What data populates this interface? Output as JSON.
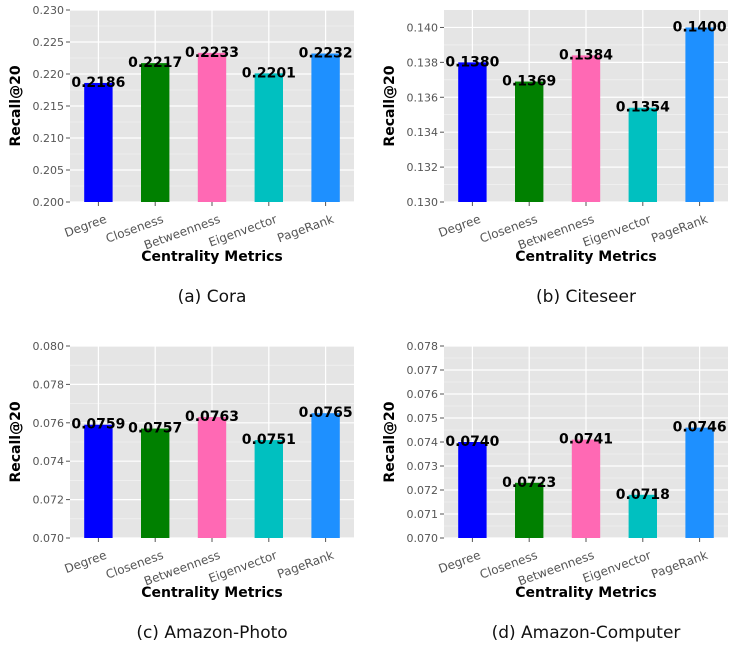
{
  "colors": {
    "panel_bg": "#e5e5e5",
    "grid": "#ffffff",
    "axis_text": "#555555",
    "bars": [
      "#0000ff",
      "#008000",
      "#ff69b4",
      "#00c0c0",
      "#1e90ff"
    ]
  },
  "chart_data": [
    {
      "type": "bar",
      "caption": "(a)  Cora",
      "categories": [
        "Degree",
        "Closeness",
        "Betweenness",
        "Eigenvector",
        "PageRank"
      ],
      "values": [
        0.2186,
        0.2217,
        0.2233,
        0.2201,
        0.2232
      ],
      "value_labels": [
        "0.2186",
        "0.2217",
        "0.2233",
        "0.2201",
        "0.2232"
      ],
      "xlabel": "Centrality Metrics",
      "ylabel": "Recall@20",
      "ylim": [
        0.2,
        0.23
      ],
      "yticks": [
        "0.200",
        "0.205",
        "0.210",
        "0.215",
        "0.220",
        "0.225",
        "0.230"
      ],
      "grid": true,
      "legend": "none"
    },
    {
      "type": "bar",
      "caption": "(b)  Citeseer",
      "categories": [
        "Degree",
        "Closeness",
        "Betweenness",
        "Eigenvector",
        "PageRank"
      ],
      "values": [
        0.138,
        0.1369,
        0.1384,
        0.1354,
        0.14
      ],
      "value_labels": [
        "0.1380",
        "0.1369",
        "0.1384",
        "0.1354",
        "0.1400"
      ],
      "xlabel": "Centrality Metrics",
      "ylabel": "Recall@20",
      "ylim": [
        0.13,
        0.141
      ],
      "yticks": [
        "0.130",
        "0.132",
        "0.134",
        "0.136",
        "0.138",
        "0.140"
      ],
      "grid": true,
      "legend": "none"
    },
    {
      "type": "bar",
      "caption": "(c)  Amazon-Photo",
      "categories": [
        "Degree",
        "Closeness",
        "Betweenness",
        "Eigenvector",
        "PageRank"
      ],
      "values": [
        0.0759,
        0.0757,
        0.0763,
        0.0751,
        0.0765
      ],
      "value_labels": [
        "0.0759",
        "0.0757",
        "0.0763",
        "0.0751",
        "0.0765"
      ],
      "xlabel": "Centrality Metrics",
      "ylabel": "Recall@20",
      "ylim": [
        0.07,
        0.08
      ],
      "yticks": [
        "0.070",
        "0.072",
        "0.074",
        "0.076",
        "0.078",
        "0.080"
      ],
      "grid": true,
      "legend": "none"
    },
    {
      "type": "bar",
      "caption": "(d)  Amazon-Computer",
      "categories": [
        "Degree",
        "Closeness",
        "Betweenness",
        "Eigenvector",
        "PageRank"
      ],
      "values": [
        0.074,
        0.0723,
        0.0741,
        0.0718,
        0.0746
      ],
      "value_labels": [
        "0.0740",
        "0.0723",
        "0.0741",
        "0.0718",
        "0.0746"
      ],
      "xlabel": "Centrality Metrics",
      "ylabel": "Recall@20",
      "ylim": [
        0.07,
        0.078
      ],
      "yticks": [
        "0.070",
        "0.071",
        "0.072",
        "0.073",
        "0.074",
        "0.075",
        "0.076",
        "0.077",
        "0.078"
      ],
      "grid": true,
      "legend": "none"
    }
  ]
}
